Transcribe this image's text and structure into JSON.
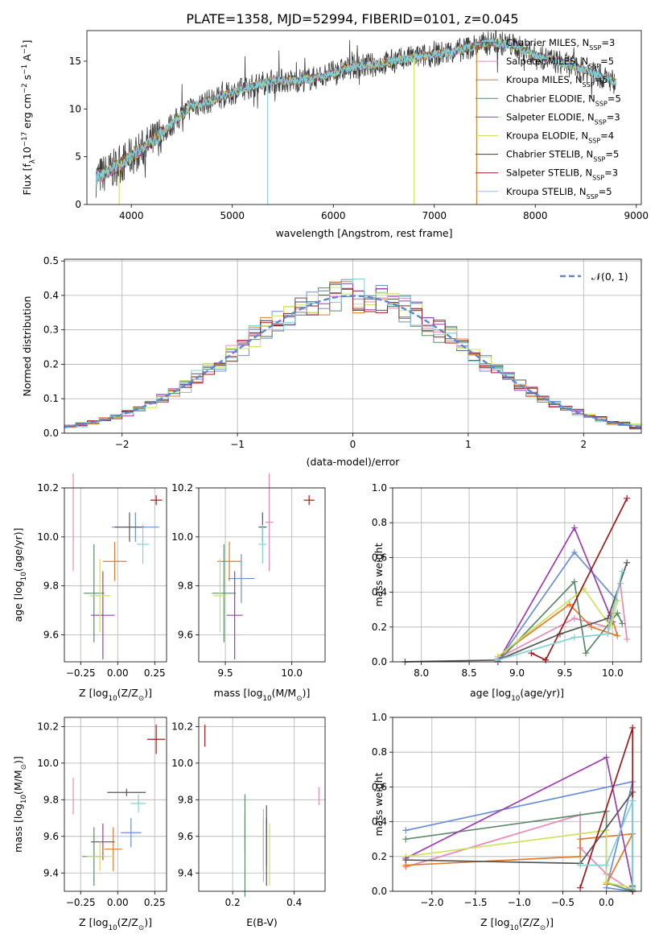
{
  "title": "PLATE=1358, MJD=52994, FIBERID=0101, z=0.045",
  "legend_names": [
    "Chabrier MILES, N",
    "Salpeter MILES, N",
    "Kroupa MILES, N",
    "Chabrier ELODIE, N",
    "Salpeter ELODIE, N",
    "Kroupa ELODIE, N",
    "Chabrier STELIB, N",
    "Salpeter STELIB, N",
    "Kroupa STELIB, N"
  ],
  "legend_sub": "SSP",
  "legend_counts": [
    "=3",
    "=5",
    "=5",
    "=5",
    "=3",
    "=4",
    "=5",
    "=3",
    "=5"
  ],
  "colors": [
    "#5b5b5b",
    "#e889b5",
    "#d67e2c",
    "#558866",
    "#9b3cb0",
    "#cbe35c",
    "#3c3c3c",
    "#a01818",
    "#7fd0d9"
  ],
  "ssp_colors": [
    "#6a8fd9",
    "#e889b5",
    "#e07b2a",
    "#5a8a6a",
    "#9b3cb0",
    "#cbe35c",
    "#555555",
    "#a01818",
    "#7fd0d9"
  ],
  "chart_data": [
    {
      "type": "line",
      "panel": "spectrum",
      "xlabel": "wavelength [Angstrom, rest frame]",
      "ylabel_main": "Flux [f",
      "ylabel_sub": "λ",
      "ylabel_rest": "10",
      "ylabel_exp": "−17",
      "ylabel_units": " erg cm",
      "ylabel_exp2": "−2",
      "ylabel_s": " s",
      "ylabel_exp3": "−1",
      "ylabel_a": " A",
      "ylabel_exp4": "−1",
      "ylabel_end": "]",
      "xlim": [
        3560,
        9050
      ],
      "ylim": [
        0,
        18.2
      ],
      "xticks": [
        "4000",
        "5000",
        "6000",
        "7000",
        "8000",
        "9000"
      ],
      "xtick_values": [
        4000,
        5000,
        6000,
        7000,
        8000,
        9000
      ],
      "yticks": [
        "0",
        "5",
        "10",
        "15"
      ],
      "ytick_values": [
        0,
        5,
        10,
        15
      ],
      "continuum_x": [
        3650,
        3800,
        4000,
        4200,
        4400,
        4600,
        4800,
        5000,
        5200,
        5400,
        5600,
        5800,
        6000,
        6200,
        6400,
        6600,
        6800,
        7000,
        7200,
        7400,
        7600,
        7800,
        8000,
        8200,
        8400,
        8600,
        8800
      ],
      "continuum_y": [
        2.8,
        3.6,
        5.0,
        6.5,
        8.4,
        10.3,
        10.9,
        11.7,
        12.4,
        13.0,
        12.9,
        13.2,
        13.8,
        14.4,
        14.6,
        15.0,
        15.4,
        15.7,
        16.0,
        16.6,
        17.0,
        16.6,
        15.6,
        15.0,
        14.4,
        13.6,
        12.8
      ]
    },
    {
      "type": "bar",
      "panel": "residual-histogram",
      "xlabel": "(data-model)/error",
      "ylabel": "Normed distribution",
      "legend": "𝒩(0, 1)",
      "xlim": [
        -2.5,
        2.5
      ],
      "ylim": [
        0,
        0.505
      ],
      "xticks": [
        "−2",
        "−1",
        "0",
        "1",
        "2"
      ],
      "xtick_values": [
        -2,
        -1,
        0,
        1,
        2
      ],
      "yticks": [
        "0.0",
        "0.1",
        "0.2",
        "0.3",
        "0.4",
        "0.5"
      ],
      "ytick_values": [
        0,
        0.1,
        0.2,
        0.3,
        0.4,
        0.5
      ],
      "bin_width": 0.1
    },
    {
      "type": "scatter",
      "panel": "age-vs-Z",
      "xlabel": "Z [log",
      "xlabel_sub": "10",
      "xlabel_rest": "(Z/Z",
      "xlabel_sub2": "⊙",
      "xlabel_end": ")]",
      "ylabel": "age  [log",
      "ylabel_sub": "10",
      "ylabel_rest": "(age/yr)]",
      "xlim": [
        -0.36,
        0.33
      ],
      "ylim": [
        9.49,
        10.2
      ],
      "xticks": [
        "−0.25",
        "0.00",
        "0.25"
      ],
      "xtick_values": [
        -0.25,
        0,
        0.25
      ],
      "yticks": [
        "9.6",
        "9.8",
        "10.0",
        "10.2"
      ],
      "ytick_values": [
        9.6,
        9.8,
        10.0,
        10.2
      ],
      "points": [
        {
          "x": 0.12,
          "y": 10.04,
          "xerr": 0.16,
          "yerr": 0.06
        },
        {
          "x": -0.3,
          "y": 10.06,
          "xerr": 0.0,
          "yerr": 0.2
        },
        {
          "x": -0.02,
          "y": 9.9,
          "xerr": 0.08,
          "yerr": 0.08
        },
        {
          "x": -0.16,
          "y": 9.77,
          "xerr": 0.07,
          "yerr": 0.2
        },
        {
          "x": -0.1,
          "y": 9.68,
          "xerr": 0.08,
          "yerr": 0.18
        },
        {
          "x": -0.12,
          "y": 9.76,
          "xerr": 0.07,
          "yerr": 0.15
        },
        {
          "x": 0.08,
          "y": 10.04,
          "xerr": 0.1,
          "yerr": 0.06
        },
        {
          "x": 0.26,
          "y": 10.15,
          "xerr": 0.04,
          "yerr": 0.02
        },
        {
          "x": 0.17,
          "y": 9.97,
          "xerr": 0.04,
          "yerr": 0.08
        }
      ]
    },
    {
      "type": "scatter",
      "panel": "age-vs-mass",
      "xlabel": "mass [log",
      "xlabel_sub": "10",
      "xlabel_rest": "(M/M",
      "xlabel_sub2": "⊙",
      "xlabel_end": ")]",
      "xlim": [
        9.3,
        10.25
      ],
      "ylim": [
        9.49,
        10.2
      ],
      "xticks": [
        "9.5",
        "10.0"
      ],
      "xtick_values": [
        9.5,
        10.0
      ],
      "yticks": [
        "9.6",
        "9.8",
        "10.0",
        "10.2"
      ],
      "ytick_values": [
        9.6,
        9.8,
        10.0,
        10.2
      ],
      "points": [
        {
          "x": 9.62,
          "y": 9.83,
          "xerr": 0.1,
          "yerr": 0.1
        },
        {
          "x": 9.83,
          "y": 10.06,
          "xerr": 0.03,
          "yerr": 0.2
        },
        {
          "x": 9.53,
          "y": 9.9,
          "xerr": 0.09,
          "yerr": 0.08
        },
        {
          "x": 9.49,
          "y": 9.77,
          "xerr": 0.09,
          "yerr": 0.2
        },
        {
          "x": 9.57,
          "y": 9.68,
          "xerr": 0.06,
          "yerr": 0.18
        },
        {
          "x": 9.46,
          "y": 9.76,
          "xerr": 0.05,
          "yerr": 0.15
        },
        {
          "x": 9.78,
          "y": 10.04,
          "xerr": 0.03,
          "yerr": 0.06
        },
        {
          "x": 10.13,
          "y": 10.15,
          "xerr": 0.04,
          "yerr": 0.02
        },
        {
          "x": 9.78,
          "y": 9.97,
          "xerr": 0.03,
          "yerr": 0.08
        }
      ]
    },
    {
      "type": "line",
      "panel": "massweight-vs-age",
      "xlabel": "age  [log",
      "xlabel_sub": "10",
      "xlabel_rest": "(age/yr)]",
      "ylabel": "mass weight",
      "xlim": [
        7.7,
        10.3
      ],
      "ylim": [
        0,
        1.0
      ],
      "xticks": [
        "8.0",
        "8.5",
        "9.0",
        "9.5",
        "10.0"
      ],
      "xtick_values": [
        8.0,
        8.5,
        9.0,
        9.5,
        10.0
      ],
      "yticks": [
        "0.0",
        "0.2",
        "0.4",
        "0.6",
        "0.8",
        "1.0"
      ],
      "ytick_values": [
        0,
        0.2,
        0.4,
        0.6,
        0.8,
        1.0
      ],
      "series": [
        {
          "x": [
            8.8,
            9.6,
            10.05
          ],
          "y": [
            0.0,
            0.63,
            0.35
          ]
        },
        {
          "x": [
            8.8,
            9.6,
            9.95,
            10.08,
            10.15
          ],
          "y": [
            0.02,
            0.25,
            0.2,
            0.45,
            0.13
          ]
        },
        {
          "x": [
            8.8,
            9.55,
            9.78,
            10.05,
            9.98
          ],
          "y": [
            0.03,
            0.33,
            0.2,
            0.15,
            0.28
          ]
        },
        {
          "x": [
            8.8,
            9.6,
            9.72,
            10.05,
            10.1
          ],
          "y": [
            0.0,
            0.46,
            0.05,
            0.28,
            0.22
          ]
        },
        {
          "x": [
            8.8,
            9.6,
            10.0
          ],
          "y": [
            0.0,
            0.77,
            0.23
          ]
        },
        {
          "x": [
            8.8,
            9.7,
            9.98,
            10.05
          ],
          "y": [
            0.03,
            0.42,
            0.2,
            0.35
          ]
        },
        {
          "x": [
            7.83,
            8.8,
            9.45,
            9.95,
            10.15
          ],
          "y": [
            0.0,
            0.01,
            0.16,
            0.25,
            0.57
          ]
        },
        {
          "x": [
            9.15,
            9.3,
            10.15
          ],
          "y": [
            0.05,
            0.01,
            0.94
          ]
        },
        {
          "x": [
            8.8,
            9.6,
            9.95,
            10.1
          ],
          "y": [
            0.01,
            0.14,
            0.16,
            0.52
          ]
        }
      ]
    },
    {
      "type": "scatter",
      "panel": "mass-vs-Z",
      "xlabel": "Z [log",
      "xlabel_sub": "10",
      "xlabel_rest": "(Z/Z",
      "xlabel_sub2": "⊙",
      "xlabel_end": ")]",
      "ylabel": "mass [log",
      "ylabel_sub": "10",
      "ylabel_rest": "(M/M",
      "ylabel_sub2": "⊙",
      "ylabel_end": ")]",
      "xlim": [
        -0.36,
        0.33
      ],
      "ylim": [
        9.3,
        10.25
      ],
      "xticks": [
        "−0.25",
        "0.00",
        "0.25"
      ],
      "xtick_values": [
        -0.25,
        0,
        0.25
      ],
      "yticks": [
        "9.4",
        "9.6",
        "9.8",
        "10.0",
        "10.2"
      ],
      "ytick_values": [
        9.4,
        9.6,
        9.8,
        10.0,
        10.2
      ],
      "points": [
        {
          "x": 0.09,
          "y": 9.62,
          "xerr": 0.07,
          "yerr": 0.08
        },
        {
          "x": -0.3,
          "y": 9.82,
          "xerr": 0.0,
          "yerr": 0.1
        },
        {
          "x": -0.03,
          "y": 9.53,
          "xerr": 0.06,
          "yerr": 0.12
        },
        {
          "x": -0.16,
          "y": 9.49,
          "xerr": 0.08,
          "yerr": 0.16
        },
        {
          "x": -0.1,
          "y": 9.57,
          "xerr": 0.08,
          "yerr": 0.1
        },
        {
          "x": -0.12,
          "y": 9.49,
          "xerr": 0.09,
          "yerr": 0.08
        },
        {
          "x": 0.06,
          "y": 9.84,
          "xerr": 0.13,
          "yerr": 0.02
        },
        {
          "x": 0.26,
          "y": 10.13,
          "xerr": 0.06,
          "yerr": 0.08
        },
        {
          "x": 0.14,
          "y": 9.78,
          "xerr": 0.05,
          "yerr": 0.05
        }
      ]
    },
    {
      "type": "scatter",
      "panel": "mass-vs-ebv",
      "xlabel": "E(B-V)",
      "xlim": [
        0.09,
        0.5
      ],
      "ylim": [
        9.3,
        10.25
      ],
      "xticks": [
        "0.2",
        "0.4"
      ],
      "xtick_values": [
        0.2,
        0.4
      ],
      "yticks": [
        "9.4",
        "9.6",
        "9.8",
        "10.0",
        "10.2"
      ],
      "ytick_values": [
        9.4,
        9.6,
        9.8,
        10.0,
        10.2
      ],
      "points": [
        {
          "x": 0.24,
          "y": 9.62,
          "xerr": 0.0,
          "yerr": 0.1
        },
        {
          "x": 0.48,
          "y": 9.82,
          "xerr": 0.0,
          "yerr": 0.05
        },
        {
          "x": 0.3,
          "y": 9.55,
          "xerr": 0.0,
          "yerr": 0.14
        },
        {
          "x": 0.24,
          "y": 9.55,
          "xerr": 0.0,
          "yerr": 0.28
        },
        {
          "x": 0.31,
          "y": 9.57,
          "xerr": 0.0,
          "yerr": 0.13
        },
        {
          "x": 0.32,
          "y": 9.5,
          "xerr": 0.0,
          "yerr": 0.17
        },
        {
          "x": 0.31,
          "y": 9.55,
          "xerr": 0.0,
          "yerr": 0.22
        },
        {
          "x": 0.11,
          "y": 10.15,
          "xerr": 0.0,
          "yerr": 0.06
        },
        {
          "x": 0.3,
          "y": 9.55,
          "xerr": 0.0,
          "yerr": 0.2
        }
      ]
    },
    {
      "type": "line",
      "panel": "massweight-vs-Z",
      "xlabel": "Z [log",
      "xlabel_sub": "10",
      "xlabel_rest": "(Z/Z",
      "xlabel_sub2": "⊙",
      "xlabel_end": ")]",
      "ylabel": "mass weight",
      "xlim": [
        -2.45,
        0.4
      ],
      "ylim": [
        0,
        1.0
      ],
      "xticks": [
        "−2.0",
        "−1.5",
        "−1.0",
        "−0.5",
        "0.0"
      ],
      "xtick_values": [
        -2.0,
        -1.5,
        -1.0,
        -0.5,
        0.0
      ],
      "yticks": [
        "0.0",
        "0.2",
        "0.4",
        "0.6",
        "0.8",
        "1.0"
      ],
      "ytick_values": [
        0,
        0.2,
        0.4,
        0.6,
        0.8,
        1.0
      ],
      "series": [
        {
          "x": [
            -2.3,
            0.3,
            0.0,
            0.3
          ],
          "y": [
            0.35,
            0.63,
            0.02,
            0.0
          ]
        },
        {
          "x": [
            -2.3,
            -0.3,
            -0.3,
            0.0,
            0.3
          ],
          "y": [
            0.14,
            0.44,
            0.25,
            0.1,
            0.0
          ]
        },
        {
          "x": [
            -2.3,
            -0.3,
            -0.3,
            0.3,
            0.0
          ],
          "y": [
            0.15,
            0.2,
            0.3,
            0.33,
            0.04
          ]
        },
        {
          "x": [
            -2.3,
            0.0,
            0.0,
            0.3,
            0.3
          ],
          "y": [
            0.3,
            0.46,
            0.05,
            0.0,
            0.01
          ]
        },
        {
          "x": [
            -2.3,
            0.0,
            0.3
          ],
          "y": [
            0.19,
            0.77,
            0.03
          ]
        },
        {
          "x": [
            -2.3,
            0.0,
            0.0,
            0.3
          ],
          "y": [
            0.2,
            0.35,
            0.05,
            0.02
          ]
        },
        {
          "x": [
            -2.3,
            -0.3,
            0.3,
            0.3
          ],
          "y": [
            0.18,
            0.16,
            0.57,
            0.03
          ]
        },
        {
          "x": [
            -0.3,
            0.3,
            0.3
          ],
          "y": [
            0.02,
            0.94,
            0.0
          ]
        },
        {
          "x": [
            -0.3,
            0.0,
            0.3,
            0.3
          ],
          "y": [
            0.15,
            0.15,
            0.52,
            0.02
          ]
        }
      ]
    }
  ]
}
